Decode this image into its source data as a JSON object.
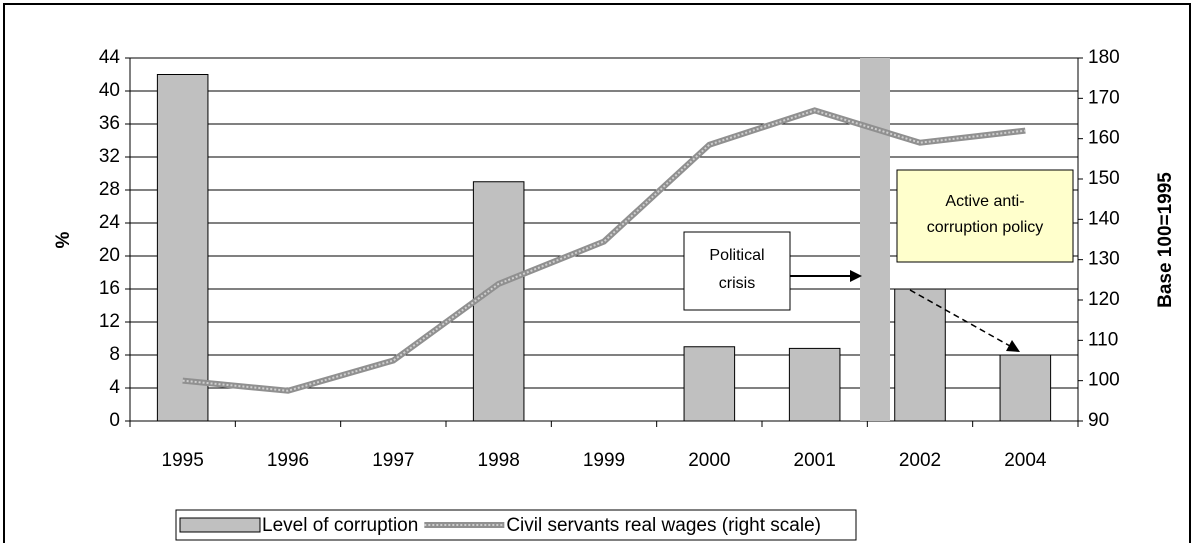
{
  "chart_data": {
    "type": "bar",
    "categories": [
      "1995",
      "1996",
      "1997",
      "1998",
      "1999",
      "2000",
      "2001",
      "2002",
      "2004"
    ],
    "series": [
      {
        "name": "Level of corruption",
        "type": "bar",
        "color": "#c0c0c0",
        "values": [
          42,
          null,
          null,
          29,
          null,
          9,
          8.8,
          16,
          8
        ]
      },
      {
        "name": "Civil servants real wages (right scale)",
        "type": "line",
        "axis": "y2",
        "color": "#909090",
        "values": [
          100,
          97.5,
          105,
          124,
          134.5,
          158.5,
          167,
          159,
          162
        ]
      }
    ],
    "ylabel": "%",
    "y2label": "Base 100=1995",
    "ylim": [
      0,
      44
    ],
    "yticks": [
      0,
      4,
      8,
      12,
      16,
      20,
      24,
      28,
      32,
      36,
      40,
      44
    ],
    "y2lim": [
      90,
      180
    ],
    "y2ticks": [
      90,
      100,
      110,
      120,
      130,
      140,
      150,
      160,
      170,
      180
    ],
    "grid": true,
    "legend": "bottom",
    "annotations": [
      {
        "lines": [
          "Political",
          "crisis"
        ]
      },
      {
        "lines": [
          "Active anti-",
          "corruption policy"
        ]
      }
    ]
  }
}
